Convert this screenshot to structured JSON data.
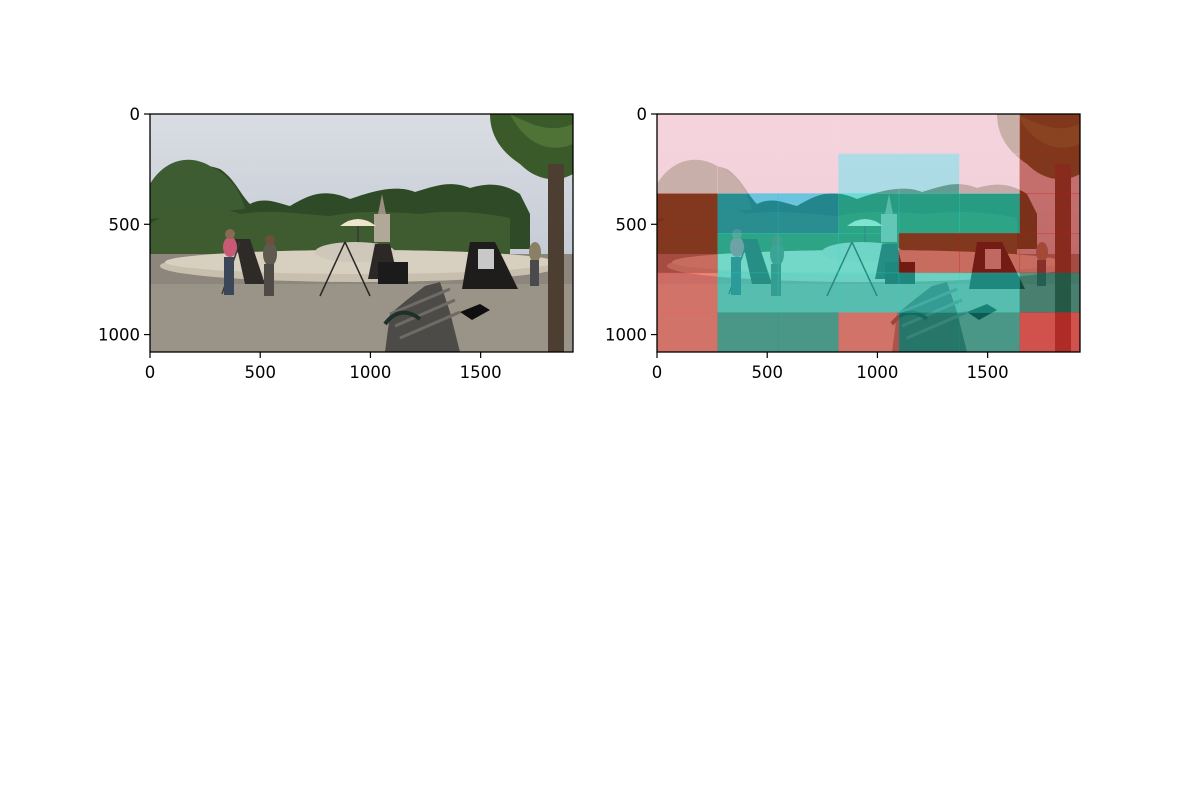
{
  "figure": {
    "background": "#ffffff"
  },
  "chart_data": [
    {
      "type": "image",
      "title": "",
      "xlabel": "",
      "ylabel": "",
      "xlim": [
        0,
        1919
      ],
      "ylim": [
        1079,
        0
      ],
      "xticks": [
        0,
        500,
        1000,
        1500
      ],
      "yticks": [
        0,
        500,
        1000
      ],
      "xtick_labels": [
        "0",
        "500",
        "1000",
        "1500"
      ],
      "ytick_labels": [
        "0",
        "500",
        "1000"
      ],
      "image_width": 1920,
      "image_height": 1080,
      "content": "photo of a park plaza with a fountain, people walking, easels and a bench",
      "overlay": null
    },
    {
      "type": "image",
      "title": "",
      "xlabel": "",
      "ylabel": "",
      "xlim": [
        0,
        1919
      ],
      "ylim": [
        1079,
        0
      ],
      "xticks": [
        0,
        500,
        1000,
        1500
      ],
      "yticks": [
        0,
        500,
        1000
      ],
      "xtick_labels": [
        "0",
        "500",
        "1000",
        "1500"
      ],
      "ytick_labels": [
        "0",
        "500",
        "1000"
      ],
      "image_width": 1920,
      "image_height": 1080,
      "content": "same photo with a semi-transparent tile-based heatmap overlay",
      "overlay": {
        "grid_cols": 7,
        "grid_rows": 6,
        "colors": {
          "r": "#ff1e1e",
          "d": "#b91c10",
          "p": "#ffd0da",
          "c": "#20e0d0",
          "b": "#1ab8e0",
          "s": "#8ee0ec",
          "t": "#0a9a86",
          "g": "#06705a",
          "o": "#ff5a50"
        },
        "cells": [
          [
            "p",
            "p",
            "p",
            "p",
            "p",
            "p",
            "d"
          ],
          [
            "p",
            "p",
            "p",
            "s",
            "s",
            "p",
            "d"
          ],
          [
            "d",
            "b",
            "b",
            "c",
            "c",
            "c",
            "d"
          ],
          [
            "d",
            "c",
            "c",
            "c",
            "d",
            "d",
            "d"
          ],
          [
            "o",
            "c",
            "c",
            "c",
            "c",
            "c",
            "g"
          ],
          [
            "o",
            "t",
            "t",
            "o",
            "t",
            "t",
            "r"
          ]
        ]
      }
    }
  ]
}
